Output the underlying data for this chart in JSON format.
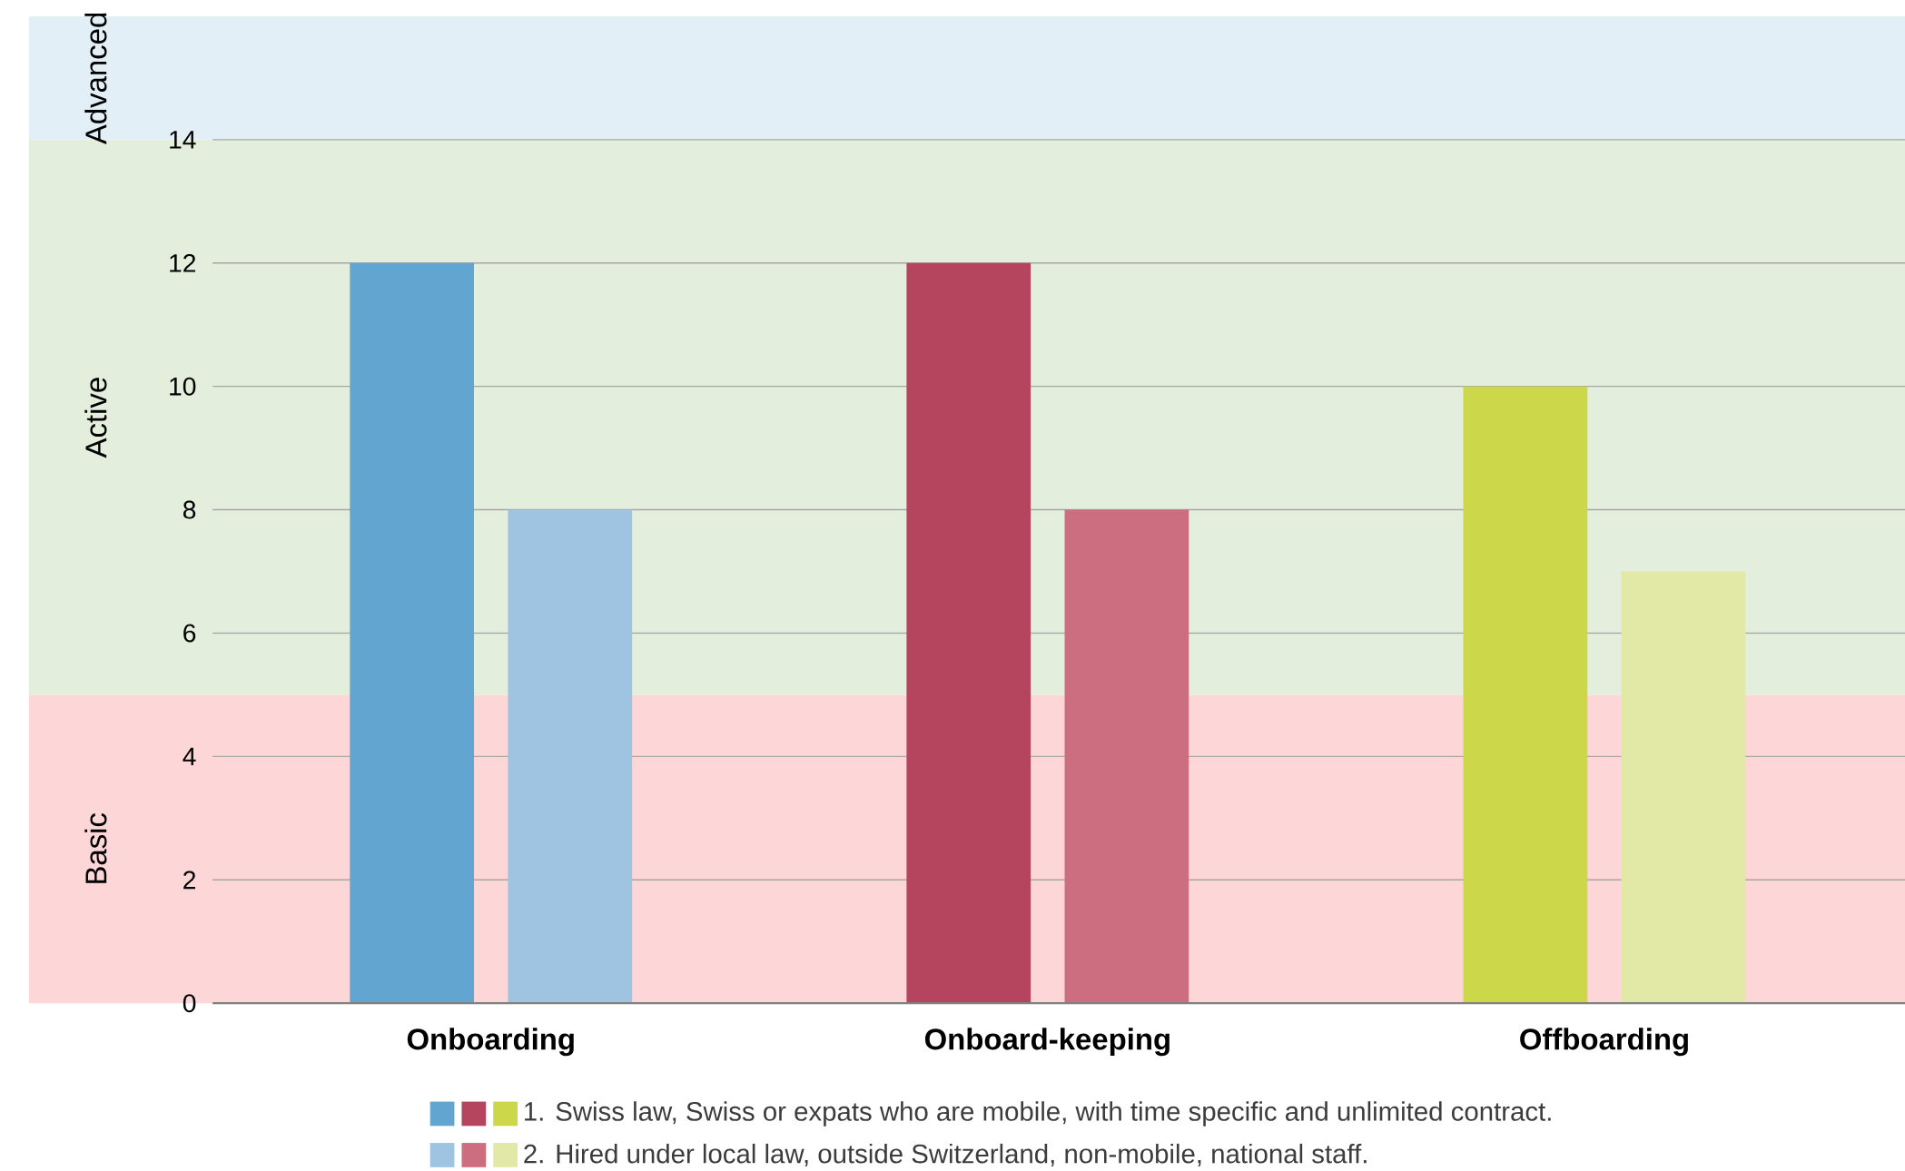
{
  "chart_data": {
    "type": "bar",
    "categories": [
      "Onboarding",
      "Onboard-keeping",
      "Offboarding"
    ],
    "series": [
      {
        "name": "1. Swiss law, Swiss or expats who are mobile, with time specific and unlimited contract.",
        "colors": [
          "#62a5d1",
          "#b5455e",
          "#ccd74a"
        ],
        "values": [
          12,
          12,
          10
        ]
      },
      {
        "name": "2. Hired under local law, outside Switzerland, non-mobile, national staff.",
        "colors": [
          "#9fc4e2",
          "#cd6e80",
          "#e2e9a6"
        ],
        "values": [
          8,
          8,
          7
        ]
      }
    ],
    "ylim": [
      0,
      14
    ],
    "yticks": [
      0,
      2,
      4,
      6,
      8,
      10,
      12,
      14
    ],
    "grid": "y",
    "legend": "bottom",
    "bands": [
      {
        "axis": "y",
        "from": 0,
        "to": 5,
        "label": "Basic",
        "color": "#fdd7d8"
      },
      {
        "axis": "y",
        "from": 5,
        "to": 14,
        "label": "Active",
        "color": "#e3efdc"
      },
      {
        "axis": "y",
        "from": 14,
        "to": 16,
        "label": "Advanced",
        "color": "#e3eff6"
      }
    ]
  }
}
